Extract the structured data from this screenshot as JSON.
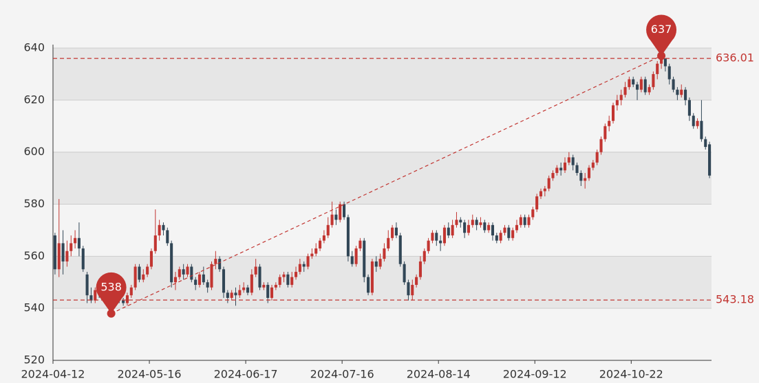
{
  "chart_data": {
    "type": "candlestick",
    "categories": [
      "2024-04-12",
      null,
      null,
      null,
      null,
      null,
      null,
      null,
      null,
      null,
      null,
      null,
      null,
      null,
      null,
      null,
      null,
      null,
      null,
      null,
      null,
      null,
      null,
      null,
      "2024-05-16",
      null,
      null,
      null,
      null,
      null,
      null,
      null,
      null,
      null,
      null,
      null,
      null,
      null,
      null,
      null,
      null,
      null,
      null,
      null,
      null,
      null,
      null,
      null,
      "2024-06-17",
      null,
      null,
      null,
      null,
      null,
      null,
      null,
      null,
      null,
      null,
      null,
      null,
      null,
      null,
      null,
      null,
      null,
      null,
      null,
      null,
      null,
      null,
      null,
      "2024-07-16",
      null,
      null,
      null,
      null,
      null,
      null,
      null,
      null,
      null,
      null,
      null,
      null,
      null,
      null,
      null,
      null,
      null,
      null,
      null,
      null,
      null,
      null,
      null,
      "2024-08-14",
      null,
      null,
      null,
      null,
      null,
      null,
      null,
      null,
      null,
      null,
      null,
      null,
      null,
      null,
      null,
      null,
      null,
      null,
      null,
      null,
      null,
      null,
      null,
      "2024-09-12",
      null,
      null,
      null,
      null,
      null,
      null,
      null,
      null,
      null,
      null,
      null,
      null,
      null,
      null,
      null,
      null,
      null,
      null,
      null,
      null,
      null,
      null,
      null,
      "2024-10-22",
      null,
      null,
      null,
      null,
      null,
      null,
      null,
      null,
      null,
      null,
      null,
      null,
      null,
      null,
      null,
      null,
      null,
      null,
      null
    ],
    "values": [
      [
        568,
        555,
        553,
        569
      ],
      [
        555,
        565,
        552,
        582
      ],
      [
        565,
        558,
        553,
        570
      ],
      [
        558,
        562,
        556,
        566
      ],
      [
        562,
        565,
        560,
        568
      ],
      [
        565,
        567,
        563,
        570
      ],
      [
        567,
        563,
        560,
        573
      ],
      [
        563,
        555,
        554,
        564
      ],
      [
        553,
        545,
        542,
        554
      ],
      [
        545,
        543,
        542,
        548
      ],
      [
        543,
        547,
        542,
        548
      ],
      [
        547,
        546,
        544,
        549
      ],
      [
        546,
        548,
        545,
        550
      ],
      [
        548,
        544,
        543,
        549
      ],
      [
        544,
        546,
        538,
        547
      ],
      [
        546,
        545,
        543,
        548
      ],
      [
        545,
        543,
        542,
        547
      ],
      [
        543,
        542,
        541,
        544
      ],
      [
        542,
        545,
        541,
        546
      ],
      [
        545,
        548,
        544,
        549
      ],
      [
        548,
        556,
        547,
        557
      ],
      [
        556,
        551,
        550,
        557
      ],
      [
        551,
        553,
        550,
        555
      ],
      [
        553,
        556,
        552,
        557
      ],
      [
        556,
        562,
        555,
        563
      ],
      [
        562,
        568,
        561,
        578
      ],
      [
        568,
        572,
        566,
        574
      ],
      [
        572,
        570,
        568,
        573
      ],
      [
        570,
        565,
        564,
        571
      ],
      [
        565,
        550,
        548,
        566
      ],
      [
        550,
        552,
        547,
        554
      ],
      [
        552,
        555,
        551,
        556
      ],
      [
        555,
        553,
        551,
        557
      ],
      [
        553,
        556,
        552,
        557
      ],
      [
        556,
        551,
        550,
        557
      ],
      [
        551,
        549,
        547,
        552
      ],
      [
        549,
        553,
        548,
        554
      ],
      [
        553,
        550,
        549,
        556
      ],
      [
        550,
        548,
        546,
        551
      ],
      [
        548,
        557,
        547,
        558
      ],
      [
        557,
        559,
        555,
        562
      ],
      [
        559,
        555,
        554,
        560
      ],
      [
        555,
        546,
        544,
        556
      ],
      [
        546,
        544,
        542,
        547
      ],
      [
        544,
        546,
        543,
        547
      ],
      [
        546,
        545,
        541,
        548
      ],
      [
        545,
        547,
        544,
        549
      ],
      [
        547,
        548,
        546,
        550
      ],
      [
        548,
        546,
        545,
        549
      ],
      [
        546,
        553,
        545,
        555
      ],
      [
        553,
        556,
        552,
        559
      ],
      [
        556,
        548,
        547,
        557
      ],
      [
        548,
        549,
        547,
        550
      ],
      [
        549,
        544,
        542,
        550
      ],
      [
        544,
        548,
        543,
        549
      ],
      [
        548,
        549,
        547,
        550
      ],
      [
        549,
        552,
        548,
        553
      ],
      [
        552,
        553,
        550,
        554
      ],
      [
        553,
        549,
        548,
        554
      ],
      [
        549,
        552,
        548,
        554
      ],
      [
        552,
        554,
        551,
        556
      ],
      [
        554,
        557,
        553,
        559
      ],
      [
        557,
        556,
        554,
        558
      ],
      [
        556,
        560,
        555,
        561
      ],
      [
        560,
        561,
        559,
        563
      ],
      [
        561,
        563,
        560,
        565
      ],
      [
        563,
        566,
        562,
        567
      ],
      [
        566,
        568,
        565,
        570
      ],
      [
        568,
        572,
        567,
        575
      ],
      [
        572,
        576,
        571,
        581
      ],
      [
        576,
        574,
        572,
        578
      ],
      [
        574,
        580,
        573,
        581
      ],
      [
        580,
        575,
        574,
        581
      ],
      [
        575,
        560,
        558,
        576
      ],
      [
        560,
        557,
        556,
        562
      ],
      [
        557,
        563,
        556,
        564
      ],
      [
        563,
        566,
        562,
        567
      ],
      [
        566,
        552,
        550,
        567
      ],
      [
        552,
        546,
        545,
        553
      ],
      [
        546,
        558,
        545,
        559
      ],
      [
        558,
        556,
        554,
        560
      ],
      [
        556,
        559,
        555,
        561
      ],
      [
        559,
        563,
        558,
        565
      ],
      [
        563,
        567,
        562,
        570
      ],
      [
        567,
        571,
        566,
        572
      ],
      [
        571,
        568,
        567,
        573
      ],
      [
        568,
        557,
        556,
        569
      ],
      [
        557,
        550,
        549,
        558
      ],
      [
        550,
        545,
        543,
        551
      ],
      [
        545,
        549,
        543,
        551
      ],
      [
        549,
        552,
        548,
        553
      ],
      [
        552,
        558,
        551,
        560
      ],
      [
        558,
        562,
        557,
        563
      ],
      [
        562,
        566,
        561,
        567
      ],
      [
        566,
        569,
        565,
        570
      ],
      [
        569,
        566,
        564,
        570
      ],
      [
        566,
        565,
        562,
        568
      ],
      [
        565,
        571,
        564,
        572
      ],
      [
        571,
        568,
        567,
        573
      ],
      [
        568,
        572,
        567,
        574
      ],
      [
        572,
        574,
        571,
        577
      ],
      [
        574,
        573,
        571,
        575
      ],
      [
        573,
        569,
        567,
        574
      ],
      [
        569,
        572,
        568,
        574
      ],
      [
        572,
        574,
        571,
        576
      ],
      [
        574,
        572,
        570,
        575
      ],
      [
        572,
        573,
        571,
        575
      ],
      [
        573,
        570,
        569,
        574
      ],
      [
        570,
        572,
        569,
        573
      ],
      [
        572,
        568,
        566,
        573
      ],
      [
        568,
        566,
        565,
        569
      ],
      [
        566,
        569,
        565,
        570
      ],
      [
        569,
        571,
        568,
        572
      ],
      [
        571,
        567,
        566,
        572
      ],
      [
        567,
        570,
        566,
        571
      ],
      [
        570,
        572,
        569,
        574
      ],
      [
        572,
        575,
        571,
        576
      ],
      [
        575,
        572,
        571,
        576
      ],
      [
        572,
        575,
        571,
        576
      ],
      [
        575,
        578,
        574,
        579
      ],
      [
        578,
        583,
        577,
        584
      ],
      [
        583,
        585,
        582,
        586
      ],
      [
        585,
        586,
        583,
        587
      ],
      [
        586,
        590,
        585,
        591
      ],
      [
        590,
        592,
        589,
        593
      ],
      [
        592,
        594,
        591,
        595
      ],
      [
        594,
        593,
        591,
        596
      ],
      [
        593,
        596,
        592,
        598
      ],
      [
        596,
        598,
        595,
        600
      ],
      [
        598,
        595,
        593,
        599
      ],
      [
        595,
        592,
        591,
        596
      ],
      [
        592,
        589,
        587,
        593
      ],
      [
        589,
        590,
        586,
        592
      ],
      [
        590,
        594,
        589,
        595
      ],
      [
        594,
        596,
        593,
        597
      ],
      [
        596,
        600,
        595,
        601
      ],
      [
        600,
        605,
        599,
        606
      ],
      [
        605,
        610,
        604,
        611
      ],
      [
        610,
        612,
        608,
        614
      ],
      [
        612,
        618,
        611,
        619
      ],
      [
        618,
        620,
        616,
        622
      ],
      [
        620,
        622,
        618,
        624
      ],
      [
        622,
        625,
        621,
        627
      ],
      [
        625,
        628,
        624,
        629
      ],
      [
        628,
        626,
        625,
        629
      ],
      [
        626,
        624,
        620,
        627
      ],
      [
        624,
        628,
        623,
        629
      ],
      [
        628,
        623,
        622,
        629
      ],
      [
        623,
        625,
        622,
        626
      ],
      [
        625,
        630,
        624,
        631
      ],
      [
        630,
        634,
        628,
        635
      ],
      [
        634,
        636,
        632,
        637
      ],
      [
        636,
        633,
        631,
        636
      ],
      [
        633,
        628,
        626,
        634
      ],
      [
        628,
        624,
        623,
        629
      ],
      [
        624,
        622,
        620,
        625
      ],
      [
        622,
        624,
        621,
        626
      ],
      [
        624,
        620,
        618,
        625
      ],
      [
        620,
        614,
        612,
        621
      ],
      [
        614,
        610,
        609,
        615
      ],
      [
        610,
        612,
        609,
        613
      ],
      [
        612,
        605,
        604,
        620
      ],
      [
        605,
        602,
        601,
        606
      ],
      [
        603,
        591,
        590,
        604
      ]
    ],
    "up_color": "#c23531",
    "down_color": "#314656",
    "mark_color": "#c23531",
    "ylim": [
      520,
      640
    ],
    "yticks": [
      520,
      540,
      560,
      580,
      600,
      620,
      640
    ],
    "grid": true,
    "split_area": true,
    "mark_lines": [
      636.01,
      543.18
    ],
    "mark_points": [
      637,
      538
    ]
  }
}
